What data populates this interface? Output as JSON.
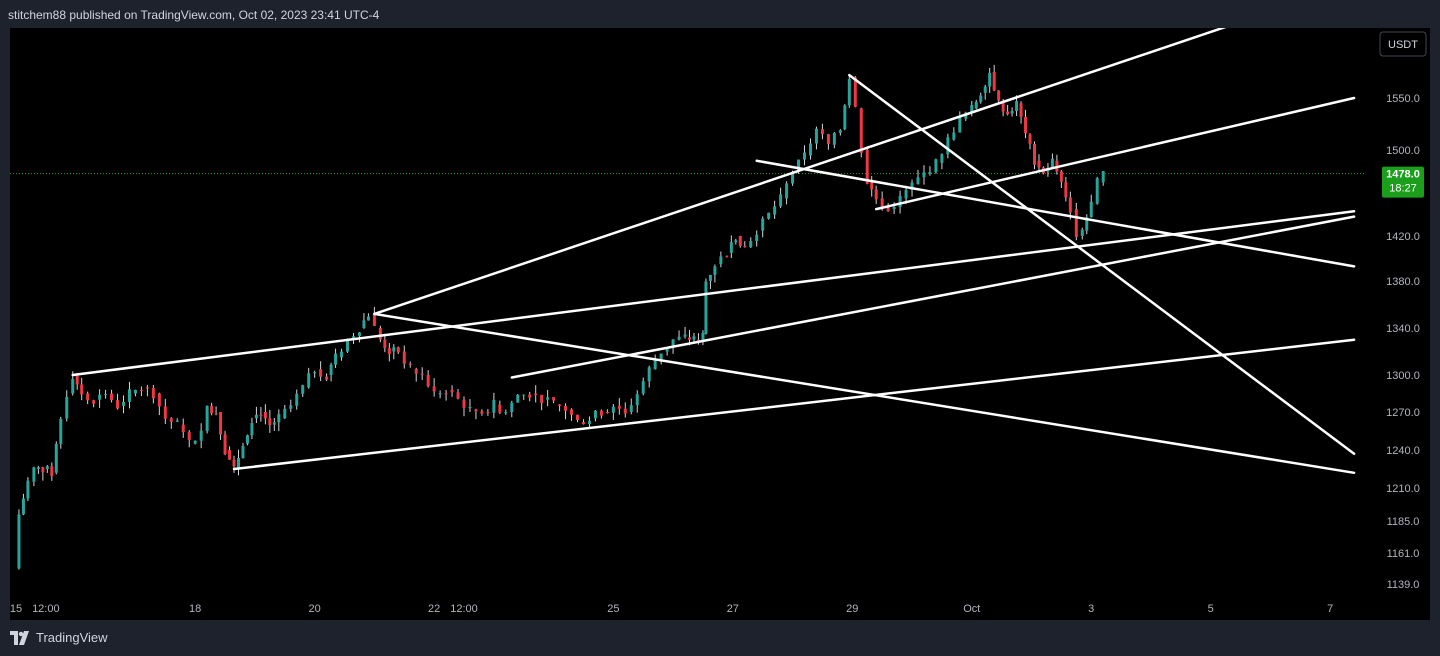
{
  "header": {
    "text": "stitchem88 published on TradingView.com, Oct 02, 2023 23:41 UTC-4"
  },
  "footer": {
    "brand": "TradingView",
    "logo_icon": "tradingview-logo-icon"
  },
  "colors": {
    "background": "#000000",
    "frame": "#1e222d",
    "up": "#26a69a",
    "up_alt": "#4caf50",
    "down": "#f23645",
    "trendline": "#ffffff",
    "price_badge": "#1b9e1b",
    "axis_text": "#b2b5be"
  },
  "chart_data": {
    "type": "candlestick",
    "currency_badge": "USDT",
    "last_price": {
      "value": "1478.0",
      "countdown": "18:27"
    },
    "y_ticks": [
      {
        "label": "1550.0",
        "value": 1550
      },
      {
        "label": "1500.0",
        "value": 1500
      },
      {
        "label": "1420.0",
        "value": 1420
      },
      {
        "label": "1380.0",
        "value": 1380
      },
      {
        "label": "1340.0",
        "value": 1340
      },
      {
        "label": "1300.0",
        "value": 1300
      },
      {
        "label": "1270.0",
        "value": 1270
      },
      {
        "label": "1240.0",
        "value": 1240
      },
      {
        "label": "1210.0",
        "value": 1210
      },
      {
        "label": "1185.0",
        "value": 1185
      },
      {
        "label": "1161.0",
        "value": 1161
      },
      {
        "label": "1139.0",
        "value": 1139
      }
    ],
    "x_ticks": [
      {
        "label": "15",
        "day": 15.0
      },
      {
        "label": "12:00",
        "day": 15.5
      },
      {
        "label": "18",
        "day": 18.0
      },
      {
        "label": "20",
        "day": 20.0
      },
      {
        "label": "22",
        "day": 22.0
      },
      {
        "label": "12:00",
        "day": 22.5
      },
      {
        "label": "25",
        "day": 25.0
      },
      {
        "label": "27",
        "day": 27.0
      },
      {
        "label": "29",
        "day": 29.0
      },
      {
        "label": "Oct",
        "day": 31.0
      },
      {
        "label": "3",
        "day": 33.0
      },
      {
        "label": "5",
        "day": 35.0
      },
      {
        "label": "7",
        "day": 37.0
      }
    ],
    "price_path": [
      [
        14.95,
        1150
      ],
      [
        15.05,
        1190
      ],
      [
        15.2,
        1215
      ],
      [
        15.3,
        1225
      ],
      [
        15.45,
        1225
      ],
      [
        15.6,
        1222
      ],
      [
        15.75,
        1265
      ],
      [
        15.85,
        1285
      ],
      [
        15.95,
        1300
      ],
      [
        16.1,
        1285
      ],
      [
        16.3,
        1280
      ],
      [
        16.5,
        1285
      ],
      [
        16.7,
        1275
      ],
      [
        16.9,
        1285
      ],
      [
        17.1,
        1290
      ],
      [
        17.3,
        1285
      ],
      [
        17.5,
        1265
      ],
      [
        17.7,
        1260
      ],
      [
        17.9,
        1245
      ],
      [
        18.1,
        1255
      ],
      [
        18.2,
        1275
      ],
      [
        18.35,
        1270
      ],
      [
        18.5,
        1240
      ],
      [
        18.65,
        1225
      ],
      [
        18.8,
        1245
      ],
      [
        18.95,
        1265
      ],
      [
        19.1,
        1270
      ],
      [
        19.25,
        1260
      ],
      [
        19.4,
        1265
      ],
      [
        19.6,
        1275
      ],
      [
        19.8,
        1290
      ],
      [
        20.0,
        1305
      ],
      [
        20.2,
        1300
      ],
      [
        20.35,
        1315
      ],
      [
        20.55,
        1330
      ],
      [
        20.75,
        1340
      ],
      [
        20.9,
        1352
      ],
      [
        21.0,
        1340
      ],
      [
        21.1,
        1330
      ],
      [
        21.25,
        1320
      ],
      [
        21.4,
        1320
      ],
      [
        21.6,
        1305
      ],
      [
        21.8,
        1300
      ],
      [
        22.0,
        1285
      ],
      [
        22.2,
        1288
      ],
      [
        22.4,
        1280
      ],
      [
        22.6,
        1272
      ],
      [
        22.8,
        1270
      ],
      [
        23.0,
        1276
      ],
      [
        23.2,
        1270
      ],
      [
        23.4,
        1284
      ],
      [
        23.6,
        1285
      ],
      [
        23.8,
        1280
      ],
      [
        24.0,
        1276
      ],
      [
        24.2,
        1272
      ],
      [
        24.4,
        1262
      ],
      [
        24.6,
        1265
      ],
      [
        24.8,
        1270
      ],
      [
        25.0,
        1275
      ],
      [
        25.2,
        1270
      ],
      [
        25.4,
        1285
      ],
      [
        25.6,
        1305
      ],
      [
        25.8,
        1320
      ],
      [
        26.0,
        1330
      ],
      [
        26.2,
        1332
      ],
      [
        26.35,
        1330
      ],
      [
        26.5,
        1335
      ],
      [
        26.55,
        1380
      ],
      [
        26.7,
        1395
      ],
      [
        26.9,
        1405
      ],
      [
        27.05,
        1420
      ],
      [
        27.2,
        1410
      ],
      [
        27.4,
        1425
      ],
      [
        27.6,
        1440
      ],
      [
        27.8,
        1455
      ],
      [
        28.0,
        1480
      ],
      [
        28.2,
        1495
      ],
      [
        28.4,
        1520
      ],
      [
        28.6,
        1505
      ],
      [
        28.8,
        1520
      ],
      [
        28.95,
        1570
      ],
      [
        29.05,
        1540
      ],
      [
        29.15,
        1500
      ],
      [
        29.25,
        1470
      ],
      [
        29.4,
        1455
      ],
      [
        29.6,
        1445
      ],
      [
        29.8,
        1455
      ],
      [
        30.0,
        1468
      ],
      [
        30.2,
        1478
      ],
      [
        30.4,
        1488
      ],
      [
        30.6,
        1510
      ],
      [
        30.8,
        1530
      ],
      [
        31.0,
        1540
      ],
      [
        31.15,
        1555
      ],
      [
        31.3,
        1575
      ],
      [
        31.45,
        1545
      ],
      [
        31.6,
        1535
      ],
      [
        31.75,
        1545
      ],
      [
        31.9,
        1515
      ],
      [
        32.05,
        1490
      ],
      [
        32.2,
        1480
      ],
      [
        32.35,
        1490
      ],
      [
        32.5,
        1470
      ],
      [
        32.65,
        1445
      ],
      [
        32.75,
        1420
      ],
      [
        32.85,
        1425
      ],
      [
        33.0,
        1450
      ],
      [
        33.1,
        1470
      ],
      [
        33.2,
        1478
      ]
    ],
    "trendlines": [
      {
        "from": [
          15.95,
          1300
        ],
        "to": [
          37.4,
          1443
        ]
      },
      {
        "from": [
          18.65,
          1225
        ],
        "to": [
          37.4,
          1330
        ]
      },
      {
        "from": [
          21.0,
          1352
        ],
        "to": [
          37.4,
          1222
        ]
      },
      {
        "from": [
          23.3,
          1298
        ],
        "to": [
          37.4,
          1438
        ]
      },
      {
        "from": [
          27.4,
          1490
        ],
        "to": [
          37.4,
          1393
        ]
      },
      {
        "from": [
          28.95,
          1572
        ],
        "to": [
          37.4,
          1237
        ]
      },
      {
        "from": [
          21.0,
          1352
        ],
        "to": [
          37.4,
          1660
        ]
      },
      {
        "from": [
          29.4,
          1445
        ],
        "to": [
          37.4,
          1550
        ]
      }
    ],
    "x_range": [
      14.9,
      37.75
    ],
    "last_price_line": true,
    "legend": "none",
    "grid": false
  }
}
